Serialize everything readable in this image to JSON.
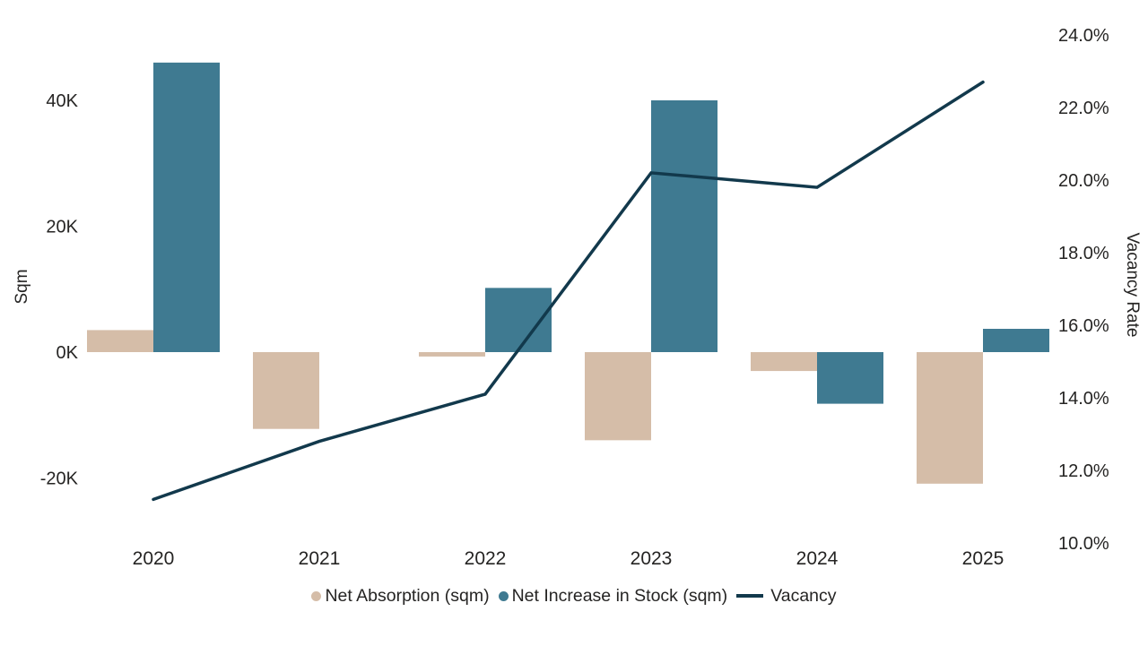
{
  "chart_data": {
    "type": "combo-bar-line",
    "categories": [
      "2020",
      "2021",
      "2022",
      "2023",
      "2024",
      "2025"
    ],
    "series": [
      {
        "name": "Net Absorption (sqm)",
        "type": "bar",
        "axis": "left",
        "color": "#D5BDA8",
        "values": [
          3500,
          -12200,
          -700,
          -14000,
          -3000,
          -20900
        ]
      },
      {
        "name": "Net Increase in Stock (sqm)",
        "type": "bar",
        "axis": "left",
        "color": "#3F7A91",
        "values": [
          46000,
          0,
          10200,
          40000,
          -8200,
          3700
        ]
      },
      {
        "name": "Vacancy",
        "type": "line",
        "axis": "right",
        "color": "#12394C",
        "values": [
          11.2,
          12.8,
          14.1,
          20.2,
          19.8,
          22.7
        ]
      }
    ],
    "left_axis": {
      "title": "Sqm",
      "ticks": [
        {
          "label": "-20K",
          "value": -20000
        },
        {
          "label": "0K",
          "value": 0
        },
        {
          "label": "20K",
          "value": 20000
        },
        {
          "label": "40K",
          "value": 40000
        }
      ]
    },
    "right_axis": {
      "title": "Vacancy Rate",
      "ticks": [
        {
          "label": "10.0%",
          "value": 10
        },
        {
          "label": "12.0%",
          "value": 12
        },
        {
          "label": "14.0%",
          "value": 14
        },
        {
          "label": "16.0%",
          "value": 16
        },
        {
          "label": "18.0%",
          "value": 18
        },
        {
          "label": "20.0%",
          "value": 20
        },
        {
          "label": "22.0%",
          "value": 22
        },
        {
          "label": "24.0%",
          "value": 24
        }
      ]
    },
    "legend_position": "bottom",
    "grid": false,
    "background": "#ffffff"
  },
  "legend": {
    "items": [
      {
        "label": "Net Absorption (sqm)",
        "marker": "circle",
        "color": "#D5BDA8"
      },
      {
        "label": "Net Increase in Stock (sqm)",
        "marker": "circle",
        "color": "#3F7A91"
      },
      {
        "label": "Vacancy",
        "marker": "line",
        "color": "#12394C"
      }
    ]
  }
}
